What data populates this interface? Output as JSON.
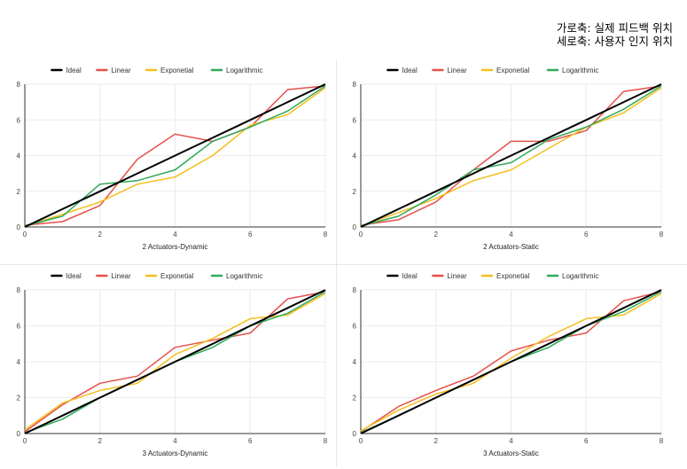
{
  "caption": {
    "line1": "가로축: 실제 피드백 위치",
    "line2": "세로축: 사용자 인지 위치"
  },
  "colors": {
    "Ideal": "#000000",
    "Linear": "#e6504a",
    "Exponetial": "#f5be1c",
    "Logarithmic": "#32a85c",
    "grid": "#ebebeb",
    "axis": "#333333"
  },
  "chart_data": [
    {
      "type": "line",
      "title": "2 Actuators-Dynamic",
      "x": [
        0,
        1,
        2,
        3,
        4,
        5,
        6,
        7,
        8
      ],
      "xlim": [
        0,
        8
      ],
      "ylim": [
        0,
        8
      ],
      "xticks": [
        0,
        2,
        4,
        6,
        8
      ],
      "yticks": [
        0,
        2,
        4,
        6,
        8
      ],
      "legend_position": "top",
      "series": [
        {
          "name": "Ideal",
          "values": [
            0,
            1,
            2,
            3,
            4,
            5,
            6,
            7,
            8
          ]
        },
        {
          "name": "Linear",
          "values": [
            0.1,
            0.3,
            1.2,
            3.8,
            5.2,
            4.8,
            5.6,
            7.7,
            7.9
          ]
        },
        {
          "name": "Exponetial",
          "values": [
            0.05,
            0.7,
            1.4,
            2.4,
            2.8,
            4.0,
            5.7,
            6.3,
            7.8
          ]
        },
        {
          "name": "Logarithmic",
          "values": [
            0.05,
            0.6,
            2.4,
            2.6,
            3.2,
            4.8,
            5.6,
            6.5,
            7.9
          ]
        }
      ]
    },
    {
      "type": "line",
      "title": "2 Actuators-Static",
      "x": [
        0,
        1,
        2,
        3,
        4,
        5,
        6,
        7,
        8
      ],
      "xlim": [
        0,
        8
      ],
      "ylim": [
        0,
        8
      ],
      "xticks": [
        0,
        2,
        4,
        6,
        8
      ],
      "yticks": [
        0,
        2,
        4,
        6,
        8
      ],
      "legend_position": "top",
      "series": [
        {
          "name": "Ideal",
          "values": [
            0,
            1,
            2,
            3,
            4,
            5,
            6,
            7,
            8
          ]
        },
        {
          "name": "Linear",
          "values": [
            0.1,
            0.4,
            1.4,
            3.2,
            4.8,
            4.8,
            5.4,
            7.6,
            7.9
          ]
        },
        {
          "name": "Exponetial",
          "values": [
            0.05,
            0.8,
            1.6,
            2.6,
            3.2,
            4.4,
            5.6,
            6.4,
            7.8
          ]
        },
        {
          "name": "Logarithmic",
          "values": [
            0.05,
            0.6,
            1.8,
            3.2,
            3.6,
            4.9,
            5.6,
            6.6,
            7.9
          ]
        }
      ]
    },
    {
      "type": "line",
      "title": "3 Actuators-Dynamic",
      "x": [
        0,
        1,
        2,
        3,
        4,
        5,
        6,
        7,
        8
      ],
      "xlim": [
        0,
        8
      ],
      "ylim": [
        0,
        8
      ],
      "xticks": [
        0,
        2,
        4,
        6,
        8
      ],
      "yticks": [
        0,
        2,
        4,
        6,
        8
      ],
      "legend_position": "top",
      "series": [
        {
          "name": "Ideal",
          "values": [
            0,
            1,
            2,
            3,
            4,
            5,
            6,
            7,
            8
          ]
        },
        {
          "name": "Linear",
          "values": [
            0.1,
            1.6,
            2.8,
            3.2,
            4.8,
            5.2,
            5.6,
            7.5,
            7.9
          ]
        },
        {
          "name": "Exponetial",
          "values": [
            0.2,
            1.7,
            2.4,
            2.8,
            4.4,
            5.3,
            6.4,
            6.6,
            7.8
          ]
        },
        {
          "name": "Logarithmic",
          "values": [
            0.05,
            0.8,
            2.0,
            3.0,
            4.0,
            4.8,
            6.0,
            6.7,
            7.9
          ]
        }
      ]
    },
    {
      "type": "line",
      "title": "3 Actuators-Static",
      "x": [
        0,
        1,
        2,
        3,
        4,
        5,
        6,
        7,
        8
      ],
      "xlim": [
        0,
        8
      ],
      "ylim": [
        0,
        8
      ],
      "xticks": [
        0,
        2,
        4,
        6,
        8
      ],
      "yticks": [
        0,
        2,
        4,
        6,
        8
      ],
      "legend_position": "top",
      "series": [
        {
          "name": "Ideal",
          "values": [
            0,
            1,
            2,
            3,
            4,
            5,
            6,
            7,
            8
          ]
        },
        {
          "name": "Linear",
          "values": [
            0.1,
            1.5,
            2.4,
            3.2,
            4.6,
            5.2,
            5.6,
            7.4,
            7.9
          ]
        },
        {
          "name": "Exponetial",
          "values": [
            0.15,
            1.3,
            2.2,
            2.8,
            4.2,
            5.4,
            6.4,
            6.6,
            7.8
          ]
        },
        {
          "name": "Logarithmic",
          "values": [
            0.05,
            1.0,
            2.0,
            3.0,
            4.0,
            4.8,
            6.0,
            6.8,
            7.9
          ]
        }
      ]
    }
  ]
}
